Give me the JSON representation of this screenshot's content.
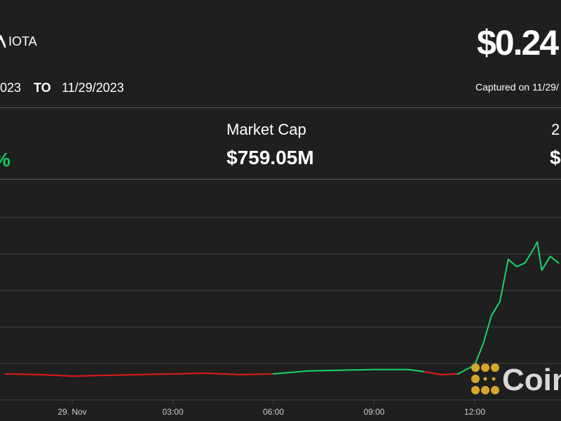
{
  "header": {
    "asset_name": "IOTA",
    "asset_icon": "iota-logo-icon",
    "price": "$0.24",
    "date_from_partial": "023",
    "to_label": "TO",
    "date_to": "11/29/2023",
    "captured": "Captured on 11/29/"
  },
  "stats": {
    "change_partial": "%",
    "market_cap_label": "Market Cap",
    "market_cap_value": "$759.05M",
    "volume_label_partial": "2",
    "volume_value_partial": "$"
  },
  "watermark": {
    "text": "Coin",
    "logo": "coindesk-logo-icon",
    "color": "#d4a72c"
  },
  "colors": {
    "up": "#17d66a",
    "down": "#e01b1b",
    "background": "#1f1f1f",
    "grid": "#444444"
  },
  "chart_data": {
    "type": "line",
    "title": "",
    "xlabel": "",
    "ylabel": "",
    "grid": true,
    "x_tick_labels": [
      "29. Nov",
      "03:00",
      "06:00",
      "09:00",
      "12:00"
    ],
    "x_ticks": [
      "2023-11-29 00:00",
      "2023-11-29 03:00",
      "2023-11-29 06:00",
      "2023-11-29 09:00",
      "2023-11-29 12:00"
    ],
    "series": [
      {
        "points": [
          [
            "2023-11-28 22:00",
            0.2253
          ],
          [
            "2023-11-28 23:00",
            0.2252
          ],
          [
            "2023-11-29 00:00",
            0.225
          ],
          [
            "2023-11-29 01:00",
            0.2251
          ],
          [
            "2023-11-29 02:00",
            0.2252
          ],
          [
            "2023-11-29 03:00",
            0.2253
          ],
          [
            "2023-11-29 04:00",
            0.2254
          ],
          [
            "2023-11-29 05:00",
            0.2252
          ],
          [
            "2023-11-29 06:00",
            0.2253
          ],
          [
            "2023-11-29 07:00",
            0.2257
          ],
          [
            "2023-11-29 08:00",
            0.2258
          ],
          [
            "2023-11-29 09:00",
            0.2259
          ],
          [
            "2023-11-29 10:00",
            0.2259
          ],
          [
            "2023-11-29 10:30",
            0.2256
          ],
          [
            "2023-11-29 11:00",
            0.2252
          ],
          [
            "2023-11-29 11:30",
            0.2253
          ],
          [
            "2023-11-29 12:00",
            0.2265
          ],
          [
            "2023-11-29 12:15",
            0.2294
          ],
          [
            "2023-11-29 12:30",
            0.2333
          ],
          [
            "2023-11-29 12:45",
            0.2352
          ],
          [
            "2023-11-29 13:00",
            0.241
          ],
          [
            "2023-11-29 13:15",
            0.24
          ],
          [
            "2023-11-29 13:30",
            0.2405
          ],
          [
            "2023-11-29 13:45",
            0.2424
          ],
          [
            "2023-11-29 13:52",
            0.2434
          ],
          [
            "2023-11-29 14:00",
            0.2395
          ],
          [
            "2023-11-29 14:15",
            0.2414
          ],
          [
            "2023-11-29 14:30",
            0.2405
          ]
        ]
      }
    ]
  }
}
